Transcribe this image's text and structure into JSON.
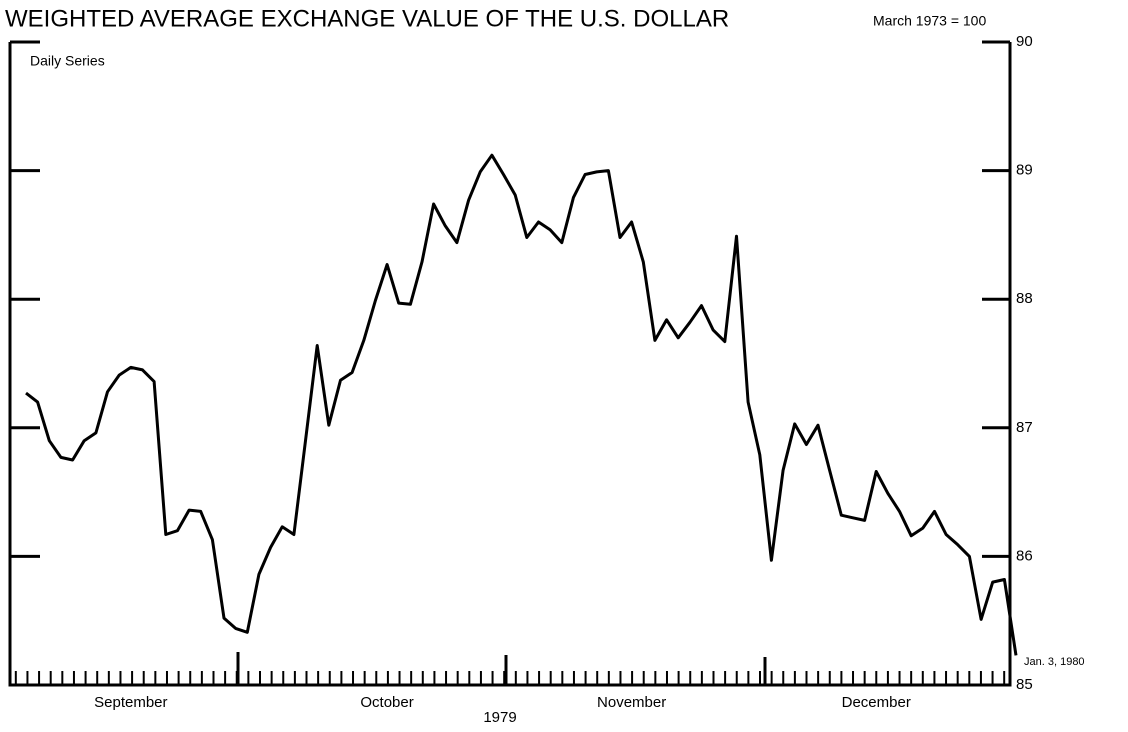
{
  "chart_data": {
    "type": "line",
    "title": "WEIGHTED AVERAGE EXCHANGE VALUE OF THE U.S. DOLLAR",
    "y_axis_label": "March 1973 = 100",
    "series_label": "Daily Series",
    "x_axis_label": "1979",
    "annotation": "Jan. 3, 1980",
    "categories": [
      null,
      null,
      null,
      null,
      null,
      null,
      null,
      null,
      null,
      "September",
      null,
      null,
      null,
      null,
      null,
      null,
      null,
      null,
      null,
      null,
      null,
      null,
      null,
      null,
      null,
      null,
      null,
      null,
      null,
      null,
      null,
      "October",
      null,
      null,
      null,
      null,
      null,
      null,
      null,
      null,
      null,
      null,
      null,
      null,
      null,
      null,
      null,
      null,
      null,
      null,
      null,
      null,
      "November",
      null,
      null,
      null,
      null,
      null,
      null,
      null,
      null,
      null,
      null,
      null,
      null,
      null,
      null,
      null,
      null,
      null,
      null,
      null,
      null,
      "December",
      null,
      null,
      null,
      null,
      null,
      null,
      null,
      null,
      null,
      null,
      null,
      null
    ],
    "values": [
      87.27,
      87.2,
      86.9,
      86.77,
      86.75,
      86.9,
      86.96,
      87.28,
      87.41,
      87.47,
      87.45,
      87.36,
      86.17,
      86.2,
      86.36,
      86.35,
      86.13,
      85.52,
      85.44,
      85.41,
      85.86,
      86.07,
      86.23,
      86.17,
      86.9,
      87.64,
      87.02,
      87.37,
      87.43,
      87.68,
      87.99,
      88.27,
      87.97,
      87.96,
      88.29,
      88.74,
      88.57,
      88.44,
      88.77,
      88.99,
      89.12,
      88.97,
      88.81,
      88.48,
      88.6,
      88.54,
      88.44,
      88.79,
      88.97,
      88.99,
      89.0,
      88.48,
      88.6,
      88.29,
      87.68,
      87.84,
      87.7,
      87.82,
      87.95,
      87.76,
      87.67,
      88.49,
      87.2,
      86.79,
      85.97,
      86.67,
      87.03,
      86.87,
      87.02,
      86.67,
      86.32,
      86.3,
      86.28,
      86.66,
      86.49,
      86.35,
      86.16,
      86.22,
      86.35,
      86.17,
      86.09,
      86.0,
      85.51,
      85.8,
      85.82,
      85.23
    ],
    "color": "#000000",
    "ylim": [
      85,
      90
    ],
    "yticks": [
      85,
      86,
      87,
      88,
      89,
      90
    ]
  }
}
